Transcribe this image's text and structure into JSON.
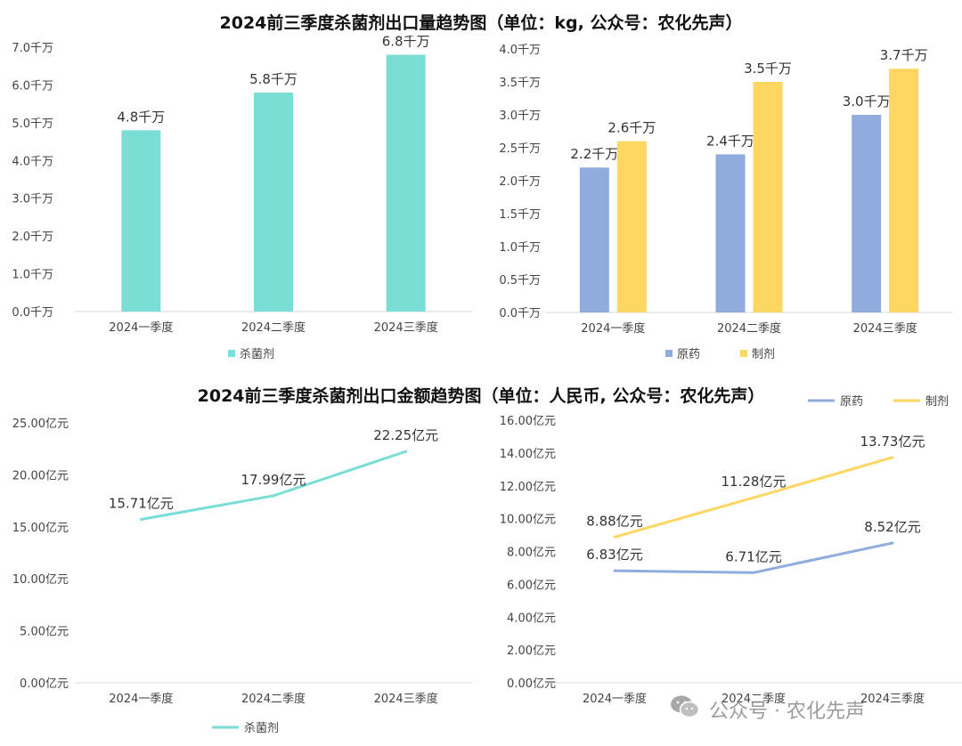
{
  "titles": {
    "top": "2024前三季度杀菌剂出口量趋势图（单位：kg, 公众号：农化先声）",
    "bottom": "2024前三季度杀菌剂出口金额趋势图（单位：人民币, 公众号：农化先声）"
  },
  "watermark": {
    "text": "公众号 · 农化先声",
    "icon": "wechat-icon"
  },
  "colors": {
    "teal": "#7bded6",
    "blue": "#90acdf",
    "yellow": "#fdd761"
  },
  "chart_data": [
    {
      "id": "volume-total",
      "type": "bar",
      "categories": [
        "2024一季度",
        "2024二季度",
        "2024三季度"
      ],
      "series": [
        {
          "name": "杀菌剂",
          "values": [
            4.8,
            5.8,
            6.8
          ],
          "color": "#7bded6"
        }
      ],
      "data_labels": [
        [
          "4.8千万",
          "5.8千万",
          "6.8千万"
        ]
      ],
      "yticks": [
        0,
        1,
        2,
        3,
        4,
        5,
        6,
        7
      ],
      "ytick_labels": [
        "0.0千万",
        "1.0千万",
        "2.0千万",
        "3.0千万",
        "4.0千万",
        "5.0千万",
        "6.0千万",
        "7.0千万"
      ],
      "ylim": [
        0,
        7
      ],
      "legend": "bottom"
    },
    {
      "id": "volume-split",
      "type": "bar",
      "categories": [
        "2024一季度",
        "2024二季度",
        "2024三季度"
      ],
      "series": [
        {
          "name": "原药",
          "values": [
            2.2,
            2.4,
            3.0
          ],
          "color": "#90acdf"
        },
        {
          "name": "制剂",
          "values": [
            2.6,
            3.5,
            3.7
          ],
          "color": "#fdd761"
        }
      ],
      "data_labels": [
        [
          "2.2千万",
          "2.4千万",
          "3.0千万"
        ],
        [
          "2.6千万",
          "3.5千万",
          "3.7千万"
        ]
      ],
      "yticks": [
        0,
        0.5,
        1,
        1.5,
        2,
        2.5,
        3,
        3.5,
        4
      ],
      "ytick_labels": [
        "0.0千万",
        "0.5千万",
        "1.0千万",
        "1.5千万",
        "2.0千万",
        "2.5千万",
        "3.0千万",
        "3.5千万",
        "4.0千万"
      ],
      "ylim": [
        0,
        4
      ],
      "legend": "bottom"
    },
    {
      "id": "value-total",
      "type": "line",
      "categories": [
        "2024一季度",
        "2024二季度",
        "2024三季度"
      ],
      "series": [
        {
          "name": "杀菌剂",
          "values": [
            15.71,
            17.99,
            22.25
          ],
          "color": "#7bded6"
        }
      ],
      "data_labels": [
        [
          "15.71亿元",
          "17.99亿元",
          "22.25亿元"
        ]
      ],
      "yticks": [
        0,
        5,
        10,
        15,
        20,
        25
      ],
      "ytick_labels": [
        "0.00亿元",
        "5.00亿元",
        "10.00亿元",
        "15.00亿元",
        "20.00亿元",
        "25.00亿元"
      ],
      "ylim": [
        0,
        25
      ],
      "legend": "bottom"
    },
    {
      "id": "value-split",
      "type": "line",
      "categories": [
        "2024一季度",
        "2024二季度",
        "2024三季度"
      ],
      "series": [
        {
          "name": "原药",
          "values": [
            6.83,
            6.71,
            8.52
          ],
          "color": "#90acdf"
        },
        {
          "name": "制剂",
          "values": [
            8.88,
            11.28,
            13.73
          ],
          "color": "#fdd761"
        }
      ],
      "data_labels": [
        [
          "6.83亿元",
          "6.71亿元",
          "8.52亿元"
        ],
        [
          "8.88亿元",
          "11.28亿元",
          "13.73亿元"
        ]
      ],
      "yticks": [
        0,
        2,
        4,
        6,
        8,
        10,
        12,
        14,
        16
      ],
      "ytick_labels": [
        "0.00亿元",
        "2.00亿元",
        "4.00亿元",
        "6.00亿元",
        "8.00亿元",
        "10.00亿元",
        "12.00亿元",
        "14.00亿元",
        "16.00亿元"
      ],
      "ylim": [
        0,
        16
      ],
      "legend": "top"
    }
  ]
}
